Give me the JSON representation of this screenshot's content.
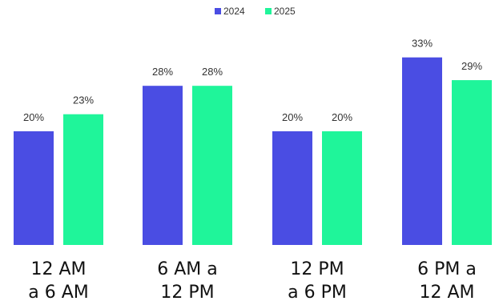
{
  "chart_data": {
    "type": "bar",
    "categories": [
      [
        "12 AM",
        "a 6 AM"
      ],
      [
        "6 AM a",
        "12 PM"
      ],
      [
        "12 PM",
        "a 6 PM"
      ],
      [
        "6 PM a",
        "12 AM"
      ]
    ],
    "series": [
      {
        "name": "2024",
        "color": "#4a4de3",
        "values": [
          20,
          28,
          20,
          33
        ],
        "labels": [
          "20%",
          "28%",
          "20%",
          "33%"
        ]
      },
      {
        "name": "2025",
        "color": "#1ff59a",
        "values": [
          23,
          28,
          20,
          29
        ],
        "labels": [
          "23%",
          "28%",
          "20%",
          "29%"
        ]
      }
    ],
    "unit": "%",
    "legend": "top-center",
    "grid": false,
    "ylim": [
      0,
      35
    ]
  }
}
